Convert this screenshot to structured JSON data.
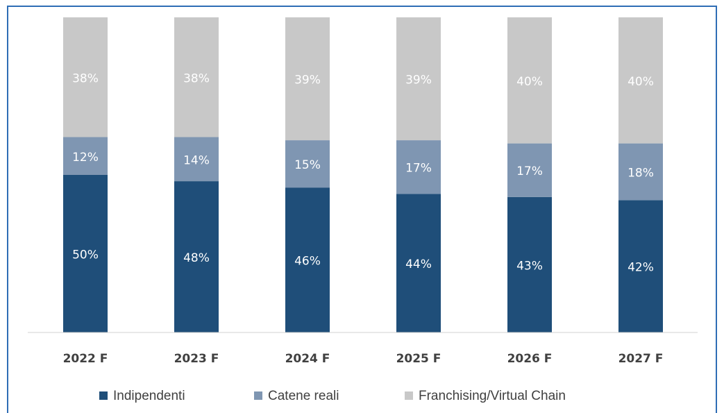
{
  "chart_data": {
    "type": "bar",
    "stacked": true,
    "categories": [
      "2022 F",
      "2023 F",
      "2024 F",
      "2025 F",
      "2026 F",
      "2027 F"
    ],
    "ylim": [
      0,
      100
    ],
    "legend": "bottom",
    "series": [
      {
        "name": "Indipendenti",
        "color": "#1f4e79",
        "values": [
          50,
          48,
          46,
          44,
          43,
          42
        ],
        "value_labels": [
          "50%",
          "48%",
          "46%",
          "44%",
          "43%",
          "42%"
        ]
      },
      {
        "name": "Catene reali",
        "color": "#7f96b2",
        "values": [
          12,
          14,
          15,
          17,
          17,
          18
        ],
        "value_labels": [
          "12%",
          "14%",
          "15%",
          "17%",
          "17%",
          "18%"
        ]
      },
      {
        "name": "Franchising/Virtual Chain",
        "color": "#c8c8c8",
        "values": [
          38,
          38,
          39,
          39,
          40,
          40
        ],
        "value_labels": [
          "38%",
          "38%",
          "39%",
          "39%",
          "40%",
          "40%"
        ]
      }
    ]
  }
}
